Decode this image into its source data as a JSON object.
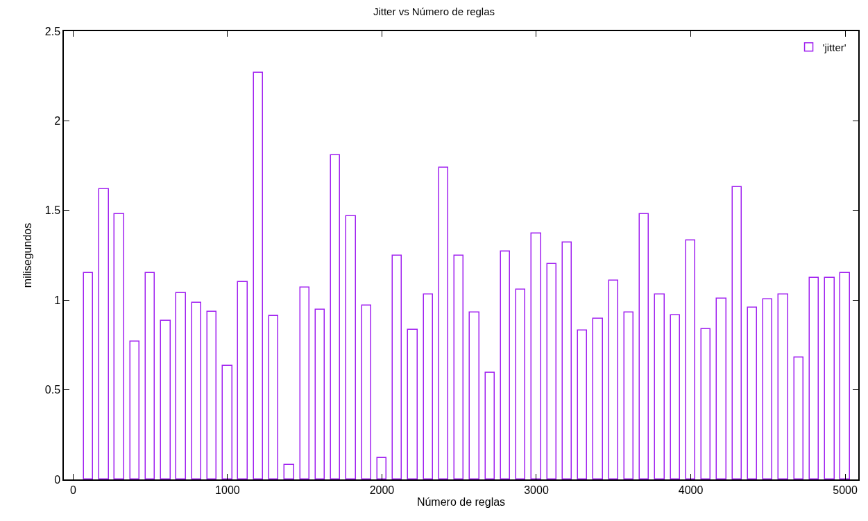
{
  "chart_data": {
    "type": "bar",
    "title": "Jitter vs Número de reglas",
    "xlabel": "Número de reglas",
    "ylabel": "milisegundos",
    "x": [
      100,
      200,
      300,
      400,
      500,
      600,
      700,
      800,
      900,
      1000,
      1100,
      1200,
      1300,
      1400,
      1500,
      1600,
      1700,
      1800,
      1900,
      2000,
      2100,
      2200,
      2300,
      2400,
      2500,
      2600,
      2700,
      2800,
      2900,
      3000,
      3100,
      3200,
      3300,
      3400,
      3500,
      3600,
      3700,
      3800,
      3900,
      4000,
      4100,
      4200,
      4300,
      4400,
      4500,
      4600,
      4700,
      4800,
      4900,
      5000
    ],
    "series": [
      {
        "name": "'jitter'",
        "color": "#a020f0",
        "values": [
          1.15,
          1.62,
          1.48,
          0.77,
          1.15,
          0.885,
          1.04,
          0.985,
          0.935,
          0.635,
          1.1,
          2.27,
          0.91,
          0.08,
          1.07,
          0.945,
          1.81,
          1.47,
          0.97,
          0.12,
          1.25,
          0.835,
          1.03,
          1.74,
          1.25,
          0.93,
          0.595,
          1.27,
          1.06,
          1.37,
          1.2,
          1.32,
          0.83,
          0.895,
          1.11,
          0.93,
          1.48,
          1.03,
          0.915,
          1.335,
          0.84,
          1.01,
          1.63,
          0.96,
          1.005,
          1.03,
          0.68,
          1.125,
          1.125,
          1.15
        ]
      }
    ],
    "xlim": [
      -60,
      5085
    ],
    "xticks": [
      0,
      1000,
      2000,
      3000,
      4000,
      5000
    ],
    "ylim": [
      0,
      2.5
    ],
    "yticks": [
      0,
      0.5,
      1,
      1.5,
      2,
      2.5
    ],
    "legend": "top right"
  }
}
